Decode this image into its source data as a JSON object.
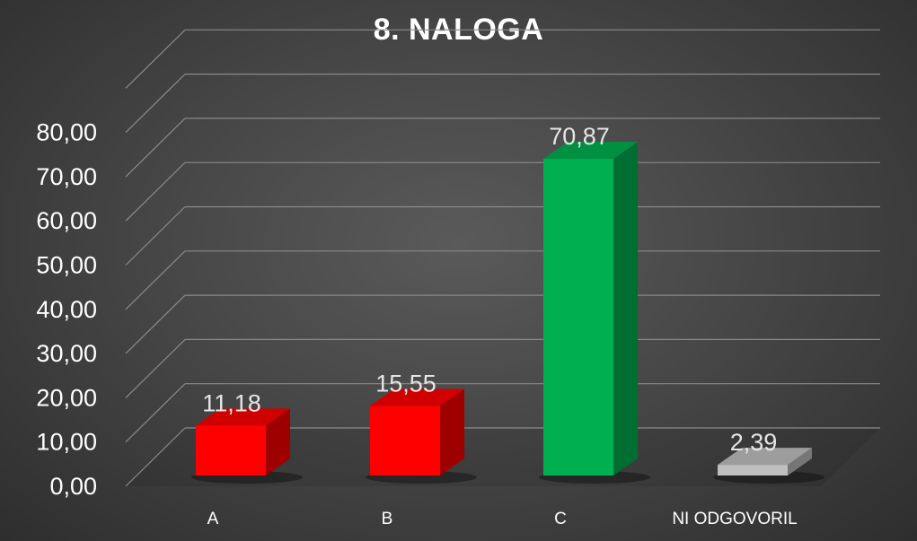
{
  "chart_data": {
    "type": "bar",
    "title": "8. NALOGA",
    "categories": [
      "A",
      "B",
      "C",
      "NI ODGOVORIL"
    ],
    "values": [
      11.18,
      15.55,
      70.87,
      2.39
    ],
    "value_labels": [
      "11,18",
      "15,55",
      "70,87",
      "2,39"
    ],
    "y_ticks": [
      "0,00",
      "10,00",
      "20,00",
      "30,00",
      "40,00",
      "50,00",
      "60,00",
      "70,00",
      "80,00"
    ],
    "ylim": [
      0,
      90
    ],
    "grid": true,
    "style": "3d-column",
    "colors": {
      "A": "#ff0000",
      "B": "#ff0000",
      "C": "#00b050",
      "NI ODGOVORIL": "#bfbfbf"
    }
  }
}
